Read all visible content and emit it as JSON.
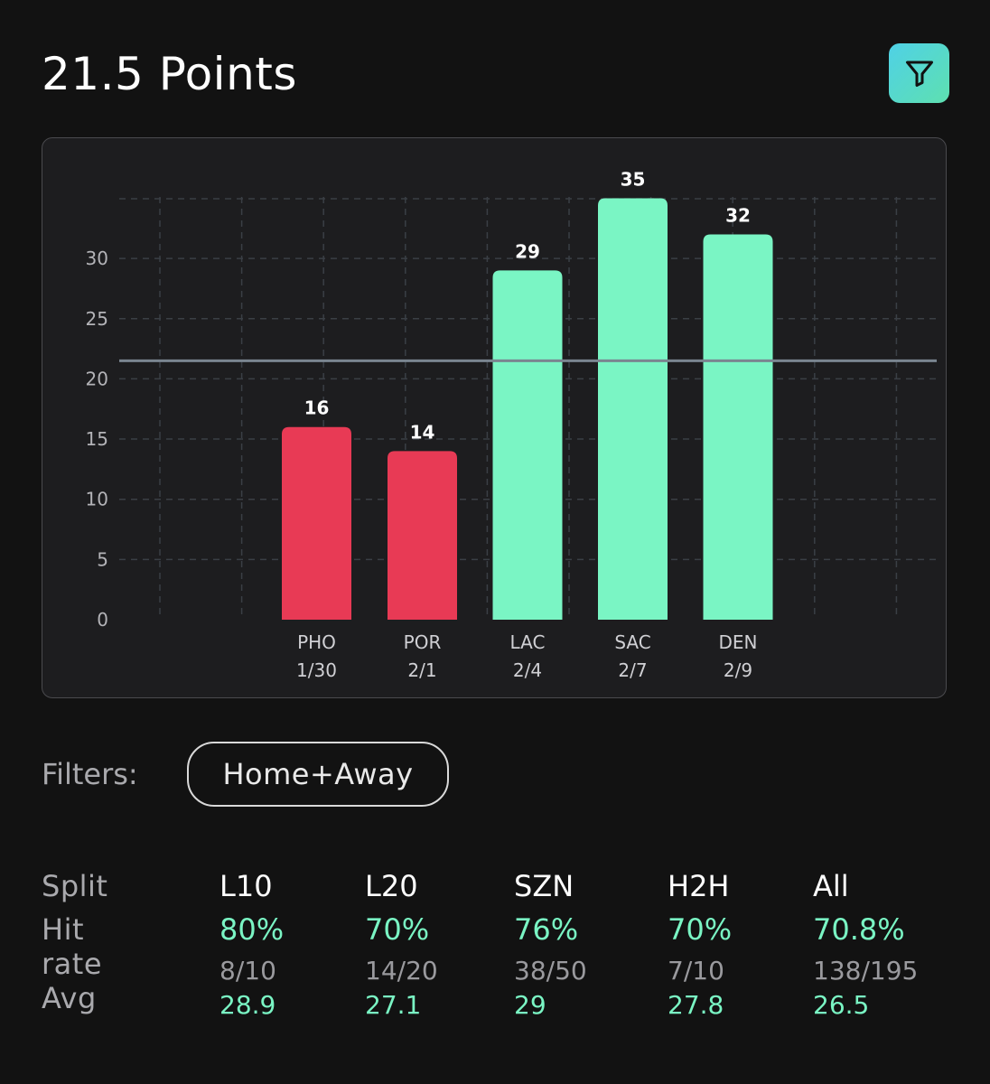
{
  "header": {
    "title": "21.5 Points"
  },
  "filter_button": {
    "icon": "filter-icon",
    "color": "#5cdbc4"
  },
  "chart_data": {
    "type": "bar",
    "categories": [
      "PHO",
      "POR",
      "LAC",
      "SAC",
      "DEN"
    ],
    "dates": [
      "1/30",
      "2/1",
      "2/4",
      "2/7",
      "2/9"
    ],
    "values": [
      16,
      14,
      29,
      35,
      32
    ],
    "threshold": 21.5,
    "ylim": [
      0,
      35
    ],
    "yticks": [
      0,
      5,
      10,
      15,
      20,
      25,
      30
    ],
    "colors": {
      "over": "#7af5c4",
      "under": "#e83a55",
      "threshold_line": "#7a8590"
    },
    "grid": true
  },
  "filters": {
    "label": "Filters:",
    "selected": "Home+Away"
  },
  "stats": {
    "row_labels": {
      "split": "Split",
      "hit_rate": "Hit rate",
      "avg": "Avg"
    },
    "columns": [
      {
        "split": "L10",
        "hit_rate": "80%",
        "fraction": "8/10",
        "avg": "28.9"
      },
      {
        "split": "L20",
        "hit_rate": "70%",
        "fraction": "14/20",
        "avg": "27.1"
      },
      {
        "split": "SZN",
        "hit_rate": "76%",
        "fraction": "38/50",
        "avg": "29"
      },
      {
        "split": "H2H",
        "hit_rate": "70%",
        "fraction": "7/10",
        "avg": "27.8"
      },
      {
        "split": "All",
        "hit_rate": "70.8%",
        "fraction": "138/195",
        "avg": "26.5"
      }
    ]
  }
}
